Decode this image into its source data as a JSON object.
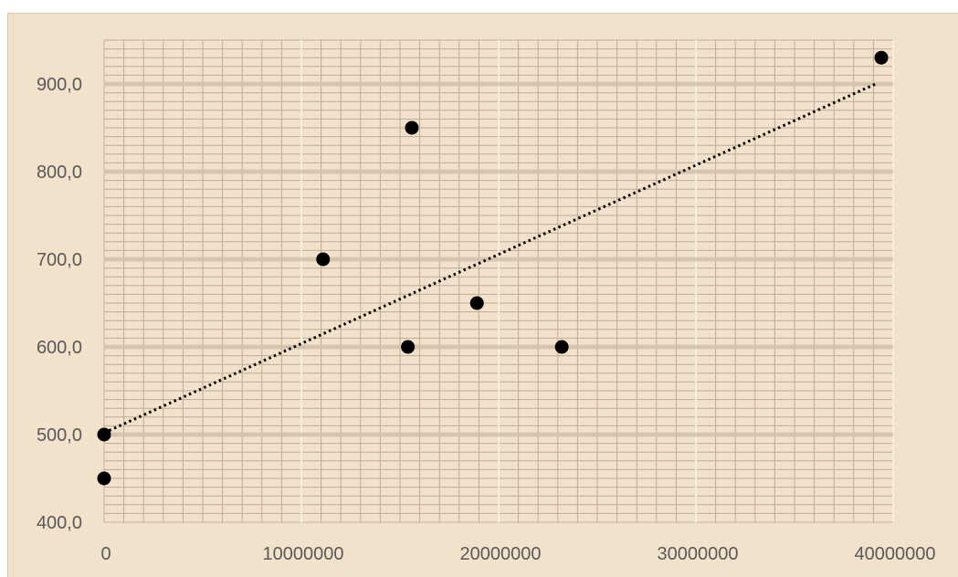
{
  "chart_data": {
    "type": "scatter",
    "title": "",
    "xlabel": "",
    "ylabel": "",
    "xlim": [
      0,
      40000000
    ],
    "ylim": [
      400,
      950
    ],
    "x_ticks": [
      0,
      10000000,
      20000000,
      30000000,
      40000000
    ],
    "x_tick_labels": [
      "0",
      "10000000",
      "20000000",
      "30000000",
      "40000000"
    ],
    "y_ticks": [
      400,
      500,
      600,
      700,
      800,
      900
    ],
    "y_tick_labels": [
      "400,0",
      "500,0",
      "600,0",
      "700,0",
      "800,0",
      "900,0"
    ],
    "grid": true,
    "legend": "none",
    "series": [
      {
        "values": [
          {
            "x": 0,
            "y": 500
          },
          {
            "x": 0,
            "y": 450
          },
          {
            "x": 11100000,
            "y": 700
          },
          {
            "x": 15400000,
            "y": 600
          },
          {
            "x": 15600000,
            "y": 850
          },
          {
            "x": 18900000,
            "y": 650
          },
          {
            "x": 23200000,
            "y": 600
          },
          {
            "x": 39400000,
            "y": 930
          }
        ],
        "marker_color": "#000000"
      }
    ],
    "trendline": {
      "type": "linear",
      "style": "dotted",
      "color": "#000000",
      "from": {
        "x": 0,
        "y": 502
      },
      "to": {
        "x": 39200000,
        "y": 901
      }
    }
  }
}
